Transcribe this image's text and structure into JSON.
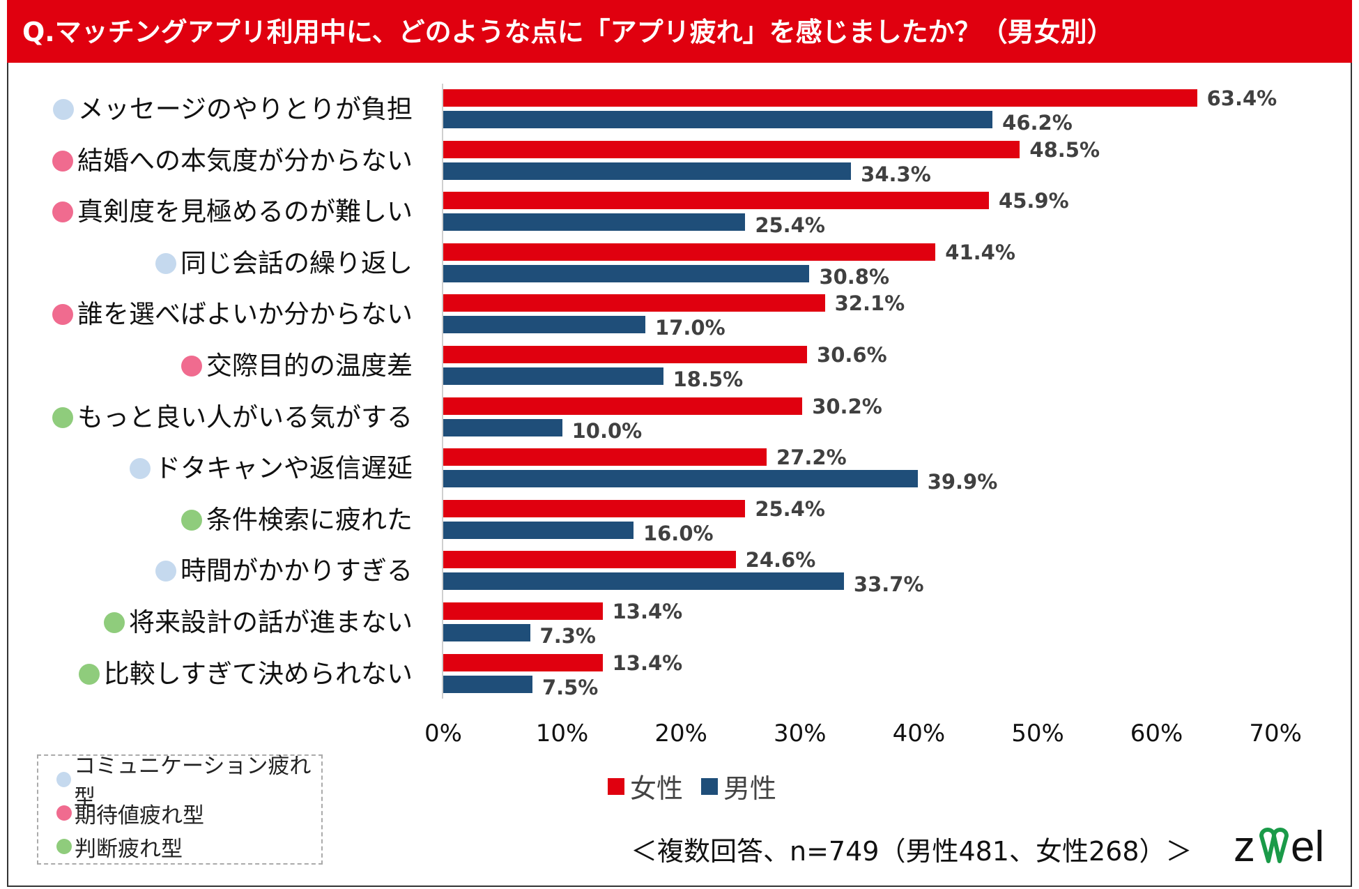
{
  "title": "Q.マッチングアプリ利用中に、どのような点に「アプリ疲れ」を感じましたか？（男女別）",
  "colors": {
    "female": "#e0000f",
    "male": "#1f4e79",
    "communication": "#c5d9ee",
    "expectation": "#f06b8f",
    "judgement": "#8fcc7c"
  },
  "chart_data": {
    "type": "bar",
    "orientation": "horizontal",
    "categories": [
      "メッセージのやりとりが負担",
      "結婚への本気度が分からない",
      "真剣度を見極めるのが難しい",
      "同じ会話の繰り返し",
      "誰を選べばよいか分からない",
      "交際目的の温度差",
      "もっと良い人がいる気がする",
      "ドタキャンや返信遅延",
      "条件検索に疲れた",
      "時間がかかりすぎる",
      "将来設計の話が進まない",
      "比較しすぎて決められない"
    ],
    "category_types": [
      "communication",
      "expectation",
      "expectation",
      "communication",
      "expectation",
      "expectation",
      "judgement",
      "communication",
      "judgement",
      "communication",
      "judgement",
      "judgement"
    ],
    "series": [
      {
        "name": "女性",
        "values": [
          63.4,
          48.5,
          45.9,
          41.4,
          32.1,
          30.6,
          30.2,
          27.2,
          25.4,
          24.6,
          13.4,
          13.4
        ]
      },
      {
        "name": "男性",
        "values": [
          46.2,
          34.3,
          25.4,
          30.8,
          17.0,
          18.5,
          10.0,
          39.9,
          16.0,
          33.7,
          7.3,
          7.5
        ]
      }
    ],
    "xlim": [
      0,
      70
    ],
    "ticks": [
      "0%",
      "10%",
      "20%",
      "30%",
      "40%",
      "50%",
      "60%",
      "70%"
    ],
    "legend_position": "bottom",
    "grid": false
  },
  "type_legend": [
    {
      "key": "communication",
      "label": "コミュニケーション疲れ型"
    },
    {
      "key": "expectation",
      "label": "期待値疲れ型"
    },
    {
      "key": "judgement",
      "label": "判断疲れ型"
    }
  ],
  "note": "＜複数回答、n=749（男性481、女性268）＞",
  "logo": "zwei"
}
